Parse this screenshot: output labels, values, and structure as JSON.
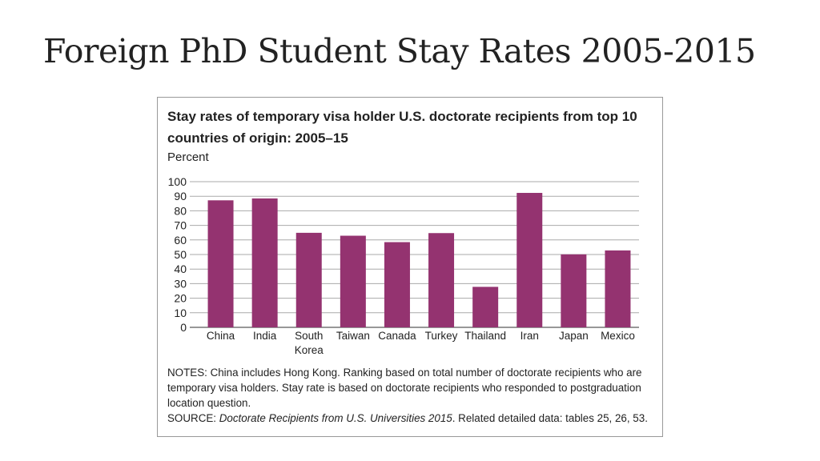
{
  "slide_title": "Foreign PhD Student Stay Rates 2005-2015",
  "chart_data": {
    "type": "bar",
    "title": "Stay rates of temporary visa holder U.S. doctorate recipients from top 10 countries of origin: 2005–15",
    "ylabel": "Percent",
    "xlabel": "",
    "categories": [
      "China",
      "India",
      "South Korea",
      "Taiwan",
      "Canada",
      "Turkey",
      "Thailand",
      "Iran",
      "Japan",
      "Mexico"
    ],
    "category_lines": [
      [
        "China"
      ],
      [
        "India"
      ],
      [
        "South",
        "Korea"
      ],
      [
        "Taiwan"
      ],
      [
        "Canada"
      ],
      [
        "Turkey"
      ],
      [
        "Thailand"
      ],
      [
        "Iran"
      ],
      [
        "Japan"
      ],
      [
        "Mexico"
      ]
    ],
    "values": [
      87.2,
      88.5,
      64.9,
      62.9,
      58.5,
      64.7,
      27.8,
      92.3,
      50.1,
      52.8
    ],
    "ylim": [
      0,
      100
    ],
    "yticks": [
      0,
      10,
      20,
      30,
      40,
      50,
      60,
      70,
      80,
      90,
      100
    ],
    "grid": true,
    "bar_color": "#943370",
    "grid_color": "#aaaaaa"
  },
  "notes": {
    "notes_text": "NOTES: China includes Hong Kong. Ranking based on total number of doctorate recipients who are temporary visa holders. Stay rate is based on doctorate recipients who responded to postgraduation location question.",
    "source_label": "SOURCE: ",
    "source_title": "Doctorate Recipients from U.S. Universities 2015",
    "source_rest": ". Related detailed data: tables 25, 26, 53."
  }
}
